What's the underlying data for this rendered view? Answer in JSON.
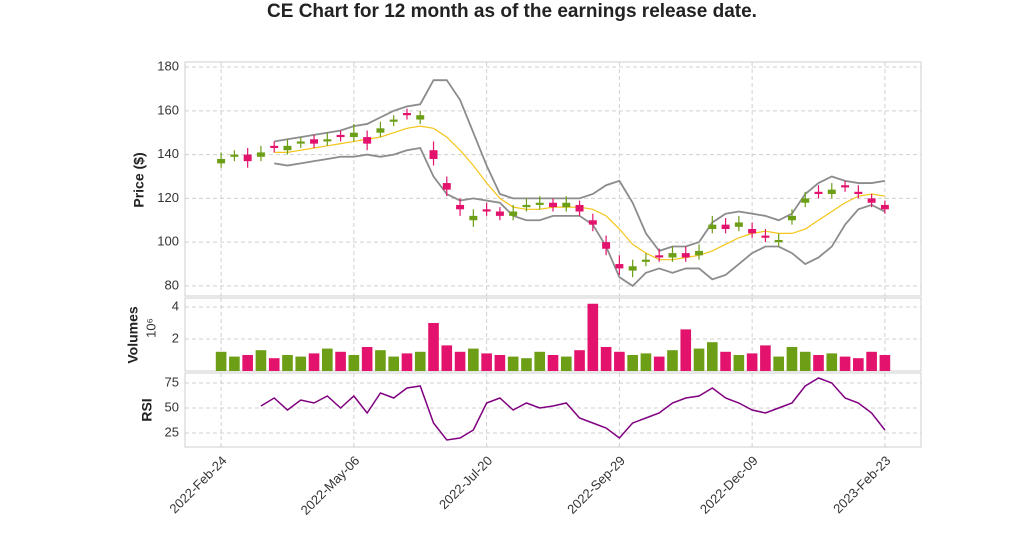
{
  "chart_data": {
    "type": "candlestick",
    "title": "CE Chart for 12 month as of the earnings release date.",
    "x": [
      0,
      5,
      10,
      15,
      20,
      25,
      30,
      35,
      40,
      45,
      50,
      55,
      60,
      65,
      70,
      75,
      80,
      85,
      90,
      95,
      100,
      105,
      110,
      115,
      120,
      125,
      130,
      135,
      140,
      145,
      150,
      155,
      160,
      165,
      170,
      175,
      180,
      185,
      190,
      195,
      200,
      205,
      210,
      215,
      220,
      225,
      230,
      235,
      240,
      245,
      250
    ],
    "xlim": [
      -13.6,
      263.6
    ],
    "xticks": [
      {
        "value": 0,
        "label": "2022-Feb-24"
      },
      {
        "value": 50,
        "label": "2022-May-06"
      },
      {
        "value": 100,
        "label": "2022-Jul-20"
      },
      {
        "value": 150,
        "label": "2022-Sep-29"
      },
      {
        "value": 200,
        "label": "2022-Dec-09"
      },
      {
        "value": 250,
        "label": "2023-Feb-23"
      }
    ],
    "grid": true,
    "up_color": "#6c9e16",
    "down_color": "#e2126d",
    "ylabel": "Price ($)",
    "ylim": [
      75.4,
      182.3
    ],
    "yticks": [
      80,
      100,
      120,
      140,
      160,
      180
    ],
    "open": [
      136,
      139,
      140,
      139,
      144,
      142,
      145,
      147,
      146,
      149,
      148,
      148,
      150,
      155,
      159,
      156,
      142,
      127,
      117,
      110,
      115,
      114,
      112,
      116,
      117,
      118,
      116,
      117,
      110,
      100,
      90,
      87,
      91,
      94,
      93,
      95,
      94,
      106,
      108,
      107,
      106,
      103,
      100,
      110,
      118,
      123,
      122,
      126,
      123,
      120,
      117
    ],
    "high": [
      141,
      142,
      143,
      144,
      146,
      147,
      148,
      149,
      150,
      151,
      154,
      151,
      155,
      158,
      161,
      160,
      146,
      130,
      120,
      115,
      118,
      116,
      117,
      120,
      121,
      120,
      121,
      119,
      113,
      103,
      94,
      92,
      95,
      97,
      98,
      98,
      99,
      112,
      111,
      112,
      109,
      106,
      104,
      115,
      123,
      126,
      127,
      128,
      126,
      122,
      119
    ],
    "low": [
      134,
      137,
      134,
      137,
      141,
      140,
      143,
      143,
      144,
      146,
      146,
      142,
      148,
      153,
      156,
      154,
      135,
      121,
      112,
      107,
      112,
      110,
      110,
      114,
      115,
      114,
      114,
      112,
      105,
      94,
      85,
      84,
      89,
      91,
      91,
      91,
      92,
      104,
      104,
      105,
      102,
      100,
      98,
      108,
      116,
      120,
      120,
      123,
      120,
      116,
      113
    ],
    "close": [
      138,
      140,
      137,
      141,
      143,
      144,
      146,
      145,
      147,
      148,
      150,
      145,
      152,
      156,
      158,
      158,
      138,
      124,
      115,
      112,
      114,
      112,
      114,
      117,
      118,
      116,
      118,
      114,
      108,
      97,
      88,
      89,
      92,
      93,
      95,
      93,
      96,
      108,
      106,
      109,
      104,
      102,
      101,
      112,
      120,
      122,
      124,
      125,
      122,
      118,
      115
    ],
    "sma": {
      "color": "#f5c518",
      "values": [
        null,
        null,
        null,
        null,
        141,
        141,
        142,
        143,
        144,
        145,
        146,
        147,
        148,
        150,
        152,
        153,
        152,
        148,
        142,
        135,
        127,
        120,
        116,
        115,
        115,
        116,
        116,
        116,
        115,
        112,
        106,
        99,
        95,
        92,
        92,
        93,
        94,
        96,
        99,
        102,
        104,
        105,
        104,
        104,
        106,
        110,
        114,
        118,
        121,
        122,
        121
      ]
    },
    "bollinger": {
      "color": "#8c8c8c",
      "upper": [
        null,
        null,
        null,
        null,
        146,
        147,
        148,
        149,
        150,
        151,
        153,
        154,
        157,
        160,
        162,
        163,
        174,
        174,
        165,
        150,
        135,
        122,
        120,
        120,
        120,
        120,
        120,
        120,
        122,
        126,
        128,
        118,
        104,
        96,
        98,
        98,
        100,
        109,
        113,
        114,
        113,
        112,
        110,
        113,
        122,
        127,
        130,
        128,
        127,
        127,
        128
      ],
      "lower": [
        null,
        null,
        null,
        null,
        136,
        135,
        136,
        137,
        138,
        139,
        139,
        140,
        139,
        140,
        142,
        143,
        130,
        122,
        119,
        120,
        119,
        118,
        112,
        110,
        110,
        112,
        112,
        112,
        108,
        98,
        84,
        80,
        86,
        88,
        86,
        88,
        88,
        83,
        85,
        90,
        95,
        98,
        98,
        95,
        90,
        93,
        98,
        108,
        115,
        117,
        114
      ]
    },
    "volume": {
      "ylabel": "Volumes",
      "offset_label": "10⁶",
      "ylim": [
        0,
        4.56
      ],
      "yticks": [
        2,
        4
      ],
      "values": [
        1.2,
        0.9,
        1.0,
        1.3,
        0.8,
        1.0,
        0.9,
        1.1,
        1.4,
        1.2,
        1.0,
        1.5,
        1.3,
        0.9,
        1.1,
        1.2,
        3.0,
        1.6,
        1.2,
        1.4,
        1.1,
        1.0,
        0.9,
        0.8,
        1.2,
        1.0,
        0.9,
        1.3,
        4.2,
        1.5,
        1.2,
        1.0,
        1.1,
        0.9,
        1.3,
        2.6,
        1.4,
        1.8,
        1.2,
        1.0,
        1.1,
        1.6,
        0.9,
        1.5,
        1.2,
        1.0,
        1.1,
        0.9,
        0.8,
        1.2,
        1.0
      ]
    },
    "rsi": {
      "ylabel": "RSI",
      "color": "#800080",
      "ylim": [
        11,
        85
      ],
      "yticks": [
        25,
        50,
        75
      ],
      "values": [
        null,
        null,
        null,
        52,
        60,
        48,
        58,
        55,
        62,
        50,
        62,
        45,
        65,
        60,
        70,
        72,
        35,
        18,
        20,
        28,
        55,
        60,
        48,
        55,
        50,
        52,
        55,
        40,
        35,
        30,
        20,
        35,
        40,
        45,
        55,
        60,
        62,
        70,
        60,
        55,
        48,
        45,
        50,
        55,
        72,
        80,
        75,
        60,
        55,
        45,
        28
      ]
    }
  }
}
